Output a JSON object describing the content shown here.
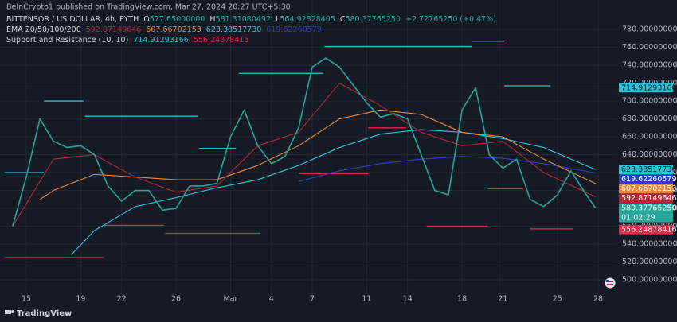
{
  "chart_data": {
    "type": "line",
    "publisher": "BeInCrypto1 published on TradingView.com, Mar 27, 2024 20:27 UTC+5:30",
    "ohlc": [
      {
        "key": "O",
        "label": "577.65000000"
      },
      {
        "key": "H",
        "label": "581.31080492"
      },
      {
        "key": "L",
        "label": "564.92828405"
      },
      {
        "key": "C",
        "label": "580.37765250"
      }
    ],
    "change": "+2.72765250 (+0.47%)",
    "ema_title": "EMA 20/50/100/200",
    "sr_title": "Support and Resistance (10, 10)",
    "watermark": "TradingView",
    "countdown": "01:02:29",
    "series": [
      {
        "name": "BITTENSOR / US DOLLAR, 4h, PYTH",
        "color": "#26a69a",
        "x": [
          -1,
          0,
          1,
          2,
          3,
          4,
          5,
          6,
          7,
          8,
          9,
          10,
          11,
          12,
          13,
          14,
          15,
          16,
          17,
          18,
          19,
          20,
          21,
          22,
          23,
          24,
          25,
          26,
          27,
          28,
          29,
          30,
          31,
          32,
          33,
          34,
          35,
          36,
          37,
          38,
          39,
          40,
          41,
          41.8
        ],
        "values": [
          560,
          615,
          680,
          655,
          648,
          650,
          640,
          605,
          588,
          600,
          600,
          578,
          580,
          605,
          605,
          608,
          660,
          690,
          650,
          630,
          638,
          670,
          738,
          748,
          738,
          718,
          698,
          682,
          686,
          680,
          640,
          600,
          595,
          690,
          715,
          640,
          625,
          635,
          590,
          582,
          595,
          622,
          598,
          580.3776525
        ],
        "last": {
          "value": 580.3776525,
          "label": "580.37765250"
        }
      },
      {
        "color": "#b2283a",
        "x": [
          -1,
          2,
          5,
          8,
          11,
          14,
          17,
          20,
          23,
          26,
          29,
          32,
          35,
          38,
          41.8
        ],
        "values": [
          560,
          635,
          640,
          615,
          598,
          605,
          650,
          665,
          720,
          695,
          665,
          650,
          655,
          620,
          592.87149646
        ],
        "last": {
          "value": 592.87149646,
          "label": "592.87149646"
        }
      },
      {
        "color": "#e8893a",
        "x": [
          1,
          2,
          5,
          8,
          11,
          14,
          17,
          20,
          23,
          26,
          29,
          32,
          35,
          38,
          41.8
        ],
        "values": [
          590,
          600,
          618,
          615,
          612,
          612,
          628,
          650,
          680,
          690,
          685,
          665,
          660,
          635,
          607.66702153
        ],
        "last": {
          "value": 607.66702153,
          "label": "607.66702153"
        }
      },
      {
        "color": "#26c6da",
        "x": [
          3.3,
          5,
          8,
          11,
          14,
          17,
          20,
          23,
          26,
          29,
          32,
          35,
          38,
          41.8
        ],
        "values": [
          528,
          555,
          582,
          592,
          603,
          612,
          628,
          648,
          663,
          668,
          665,
          658,
          648,
          623.3851773
        ],
        "last": {
          "value": 623.3851773,
          "label": "623.38517730"
        }
      },
      {
        "color": "#2f3fbf",
        "x": [
          20,
          23,
          26,
          29,
          32,
          35,
          38,
          41.8
        ],
        "values": [
          610,
          622,
          630,
          635,
          638,
          636,
          630,
          619.62260579
        ],
        "last": {
          "value": 619.62260579,
          "label": "619.62260579"
        }
      }
    ],
    "levels": [
      {
        "color": "#22c3d6",
        "last": {
          "value": 714.91293166,
          "label": "714.91293166"
        },
        "segments": [
          {
            "start": -1.6,
            "end": 1.3,
            "value": 620
          },
          {
            "start": 1.3,
            "end": 4.2,
            "value": 700
          },
          {
            "start": 4.3,
            "end": 12.6,
            "value": 683
          },
          {
            "start": 12.7,
            "end": 15.4,
            "value": 647
          },
          {
            "start": 15.6,
            "end": 21.8,
            "value": 731
          },
          {
            "start": 21.9,
            "end": 32.7,
            "value": 761
          },
          {
            "start": 32.7,
            "end": 35.1,
            "value": 767
          },
          {
            "start": 35.1,
            "end": 38.5,
            "value": 717
          }
        ]
      },
      {
        "color": "#e0284a",
        "last": {
          "value": 556.24878416,
          "label": "556.24878416"
        },
        "segments": [
          {
            "start": -1.6,
            "end": 5.7,
            "value": 525
          },
          {
            "start": 5.7,
            "end": 10.1,
            "value": 561
          },
          {
            "start": 10.2,
            "end": 17.2,
            "value": 552
          },
          {
            "start": 20,
            "end": 25.1,
            "value": 619
          },
          {
            "start": 25.1,
            "end": 27.9,
            "value": 670
          },
          {
            "start": 29.4,
            "end": 33.9,
            "value": 560
          },
          {
            "start": 33.9,
            "end": 36.5,
            "value": 602
          },
          {
            "start": 37,
            "end": 40.2,
            "value": 557
          }
        ]
      }
    ],
    "xlim": [
      -1.93,
      43.4
    ],
    "ylim": [
      484,
      813
    ],
    "grid": true,
    "xticks": [
      {
        "value": 0,
        "label": "15"
      },
      {
        "value": 4,
        "label": "19"
      },
      {
        "value": 7,
        "label": "22"
      },
      {
        "value": 11,
        "label": "26"
      },
      {
        "value": 15,
        "label": "Mar"
      },
      {
        "value": 18,
        "label": "4"
      },
      {
        "value": 21,
        "label": "7"
      },
      {
        "value": 25,
        "label": "11"
      },
      {
        "value": 28,
        "label": "14"
      },
      {
        "value": 32,
        "label": "18"
      },
      {
        "value": 35,
        "label": "21"
      },
      {
        "value": 39,
        "label": "25"
      },
      {
        "value": 42,
        "label": "28"
      }
    ],
    "yticks": [
      {
        "value": 500,
        "label": "500.00000000"
      },
      {
        "value": 520,
        "label": "520.00000000"
      },
      {
        "value": 540,
        "label": "540.00000000"
      },
      {
        "value": 560,
        "label": "560.00000000"
      },
      {
        "value": 580,
        "label": "580.00000000"
      },
      {
        "value": 600,
        "label": "600.00000000"
      },
      {
        "value": 620,
        "label": "620.00000000"
      },
      {
        "value": 640,
        "label": "640.00000000"
      },
      {
        "value": 660,
        "label": "660.00000000"
      },
      {
        "value": 680,
        "label": "680.00000000"
      },
      {
        "value": 700,
        "label": "700.00000000"
      },
      {
        "value": 720,
        "label": "720.00000000"
      },
      {
        "value": 740,
        "label": "740.00000000"
      },
      {
        "value": 760,
        "label": "760.00000000"
      },
      {
        "value": 780,
        "label": "780.00000000"
      }
    ]
  }
}
